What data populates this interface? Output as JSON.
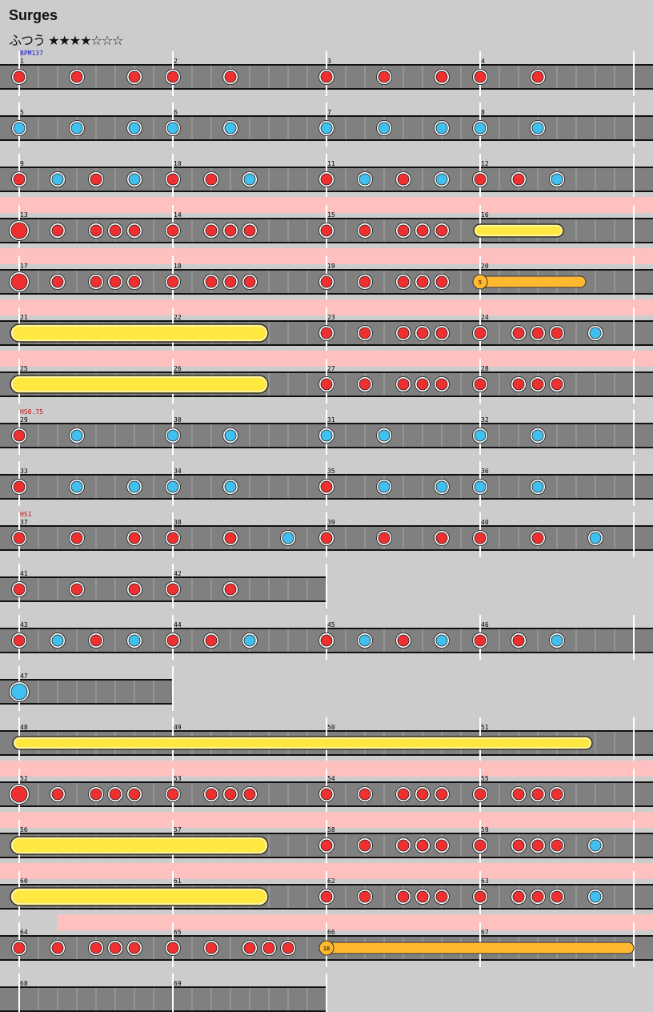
{
  "song": {
    "title": "Surges",
    "difficulty_label": "ふつう",
    "stars_filled": "★★★★",
    "stars_empty": "☆☆☆",
    "star_level": 4
  },
  "colors": {
    "don": "#f03030",
    "ka": "#40c0f0",
    "roll": "#ffe840",
    "balloon": "#ffb830",
    "gogo": "#ffc0c0",
    "lane": "#808080"
  },
  "annotations": [
    {
      "row": 0,
      "text": "BPM137",
      "color": "#1010c0"
    },
    {
      "row": 7,
      "text": "HS0.75",
      "color": "#c01010"
    },
    {
      "row": 9,
      "text": "HS1",
      "color": "#c01010"
    }
  ],
  "rows": [
    {
      "bars": 4,
      "numbers": [
        1,
        2,
        3,
        4
      ],
      "gogo": null,
      "notes": [
        [
          0,
          "d"
        ],
        [
          3,
          "d"
        ],
        [
          6,
          "d"
        ],
        [
          8,
          "d"
        ],
        [
          11,
          "d"
        ],
        [
          16,
          "d"
        ],
        [
          19,
          "d"
        ],
        [
          22,
          "d"
        ],
        [
          24,
          "d"
        ],
        [
          27,
          "d"
        ]
      ]
    },
    {
      "bars": 4,
      "numbers": [
        5,
        6,
        7,
        8
      ],
      "gogo": null,
      "notes": [
        [
          0,
          "k"
        ],
        [
          3,
          "k"
        ],
        [
          6,
          "k"
        ],
        [
          8,
          "k"
        ],
        [
          11,
          "k"
        ],
        [
          16,
          "k"
        ],
        [
          19,
          "k"
        ],
        [
          22,
          "k"
        ],
        [
          24,
          "k"
        ],
        [
          27,
          "k"
        ]
      ]
    },
    {
      "bars": 4,
      "numbers": [
        9,
        10,
        11,
        12
      ],
      "gogo": null,
      "notes": [
        [
          0,
          "d"
        ],
        [
          2,
          "k"
        ],
        [
          4,
          "d"
        ],
        [
          6,
          "k"
        ],
        [
          8,
          "d"
        ],
        [
          10,
          "d"
        ],
        [
          12,
          "k"
        ],
        [
          16,
          "d"
        ],
        [
          18,
          "k"
        ],
        [
          20,
          "d"
        ],
        [
          22,
          "k"
        ],
        [
          24,
          "d"
        ],
        [
          26,
          "d"
        ],
        [
          28,
          "k"
        ]
      ]
    },
    {
      "bars": 4,
      "numbers": [
        13,
        14,
        15,
        16
      ],
      "gogo": [
        0,
        32
      ],
      "notes": [
        [
          0,
          "D"
        ],
        [
          2,
          "d"
        ],
        [
          4,
          "d"
        ],
        [
          5,
          "d"
        ],
        [
          6,
          "d"
        ],
        [
          8,
          "d"
        ],
        [
          10,
          "d"
        ],
        [
          11,
          "d"
        ],
        [
          12,
          "d"
        ],
        [
          16,
          "d"
        ],
        [
          18,
          "d"
        ],
        [
          20,
          "d"
        ],
        [
          21,
          "d"
        ],
        [
          22,
          "d"
        ]
      ],
      "rolls": [
        [
          24,
          28,
          "roll"
        ]
      ]
    },
    {
      "bars": 4,
      "numbers": [
        17,
        18,
        19,
        20
      ],
      "gogo": [
        0,
        32
      ],
      "notes": [
        [
          0,
          "D"
        ],
        [
          2,
          "d"
        ],
        [
          4,
          "d"
        ],
        [
          5,
          "d"
        ],
        [
          6,
          "d"
        ],
        [
          8,
          "d"
        ],
        [
          10,
          "d"
        ],
        [
          11,
          "d"
        ],
        [
          12,
          "d"
        ],
        [
          16,
          "d"
        ],
        [
          18,
          "d"
        ],
        [
          20,
          "d"
        ],
        [
          21,
          "d"
        ],
        [
          22,
          "d"
        ]
      ],
      "rolls": [
        [
          24,
          29.5,
          "balloon",
          "5"
        ]
      ]
    },
    {
      "bars": 4,
      "numbers": [
        21,
        22,
        23,
        24
      ],
      "gogo": [
        0,
        32
      ],
      "notes": [
        [
          16,
          "d"
        ],
        [
          18,
          "d"
        ],
        [
          20,
          "d"
        ],
        [
          21,
          "d"
        ],
        [
          22,
          "d"
        ],
        [
          24,
          "d"
        ],
        [
          26,
          "d"
        ],
        [
          27,
          "d"
        ],
        [
          28,
          "d"
        ],
        [
          30,
          "k"
        ]
      ],
      "rolls": [
        [
          0,
          12.5,
          "bigroll"
        ]
      ]
    },
    {
      "bars": 4,
      "numbers": [
        25,
        26,
        27,
        28
      ],
      "gogo": [
        0,
        32
      ],
      "notes": [
        [
          16,
          "d"
        ],
        [
          18,
          "d"
        ],
        [
          20,
          "d"
        ],
        [
          21,
          "d"
        ],
        [
          22,
          "d"
        ],
        [
          24,
          "d"
        ],
        [
          26,
          "d"
        ],
        [
          27,
          "d"
        ],
        [
          28,
          "d"
        ]
      ],
      "rolls": [
        [
          0,
          12.5,
          "bigroll"
        ]
      ]
    },
    {
      "bars": 4,
      "numbers": [
        29,
        30,
        31,
        32
      ],
      "gogo": null,
      "notes": [
        [
          0,
          "d"
        ],
        [
          3,
          "k"
        ],
        [
          8,
          "k"
        ],
        [
          11,
          "k"
        ],
        [
          16,
          "k"
        ],
        [
          19,
          "k"
        ],
        [
          24,
          "k"
        ],
        [
          27,
          "k"
        ]
      ]
    },
    {
      "bars": 4,
      "numbers": [
        33,
        34,
        35,
        36
      ],
      "gogo": null,
      "notes": [
        [
          0,
          "d"
        ],
        [
          3,
          "k"
        ],
        [
          6,
          "k"
        ],
        [
          8,
          "k"
        ],
        [
          11,
          "k"
        ],
        [
          16,
          "d"
        ],
        [
          19,
          "k"
        ],
        [
          22,
          "k"
        ],
        [
          24,
          "k"
        ],
        [
          27,
          "k"
        ]
      ]
    },
    {
      "bars": 4,
      "numbers": [
        37,
        38,
        39,
        40
      ],
      "gogo": null,
      "notes": [
        [
          0,
          "d"
        ],
        [
          3,
          "d"
        ],
        [
          6,
          "d"
        ],
        [
          8,
          "d"
        ],
        [
          11,
          "d"
        ],
        [
          14,
          "k"
        ],
        [
          16,
          "d"
        ],
        [
          19,
          "d"
        ],
        [
          22,
          "d"
        ],
        [
          24,
          "d"
        ],
        [
          27,
          "d"
        ],
        [
          30,
          "k"
        ]
      ]
    },
    {
      "bars": 2,
      "numbers": [
        41,
        42
      ],
      "gogo": null,
      "notes": [
        [
          0,
          "d"
        ],
        [
          3,
          "d"
        ],
        [
          6,
          "d"
        ],
        [
          8,
          "d"
        ],
        [
          11,
          "d"
        ]
      ]
    },
    {
      "bars": 4,
      "numbers": [
        43,
        44,
        45,
        46
      ],
      "gogo": null,
      "notes": [
        [
          0,
          "d"
        ],
        [
          2,
          "k"
        ],
        [
          4,
          "d"
        ],
        [
          6,
          "k"
        ],
        [
          8,
          "d"
        ],
        [
          10,
          "d"
        ],
        [
          12,
          "k"
        ],
        [
          16,
          "d"
        ],
        [
          18,
          "k"
        ],
        [
          20,
          "d"
        ],
        [
          22,
          "k"
        ],
        [
          24,
          "d"
        ],
        [
          26,
          "d"
        ],
        [
          28,
          "k"
        ]
      ]
    },
    {
      "bars": 1,
      "numbers": [
        47
      ],
      "gogo": null,
      "notes": [
        [
          0,
          "K"
        ]
      ]
    },
    {
      "bars": 4,
      "numbers": [
        48,
        49,
        50,
        51
      ],
      "gogo": null,
      "notes": [],
      "rolls": [
        [
          0,
          29.5,
          "roll"
        ]
      ]
    },
    {
      "bars": 4,
      "numbers": [
        52,
        53,
        54,
        55
      ],
      "gogo": [
        0,
        32
      ],
      "notes": [
        [
          0,
          "D"
        ],
        [
          2,
          "d"
        ],
        [
          4,
          "d"
        ],
        [
          5,
          "d"
        ],
        [
          6,
          "d"
        ],
        [
          8,
          "d"
        ],
        [
          10,
          "d"
        ],
        [
          11,
          "d"
        ],
        [
          12,
          "d"
        ],
        [
          16,
          "d"
        ],
        [
          18,
          "d"
        ],
        [
          20,
          "d"
        ],
        [
          21,
          "d"
        ],
        [
          22,
          "d"
        ],
        [
          24,
          "d"
        ],
        [
          26,
          "d"
        ],
        [
          27,
          "d"
        ],
        [
          28,
          "d"
        ]
      ]
    },
    {
      "bars": 4,
      "numbers": [
        56,
        57,
        58,
        59
      ],
      "gogo": [
        0,
        32
      ],
      "notes": [
        [
          16,
          "d"
        ],
        [
          18,
          "d"
        ],
        [
          20,
          "d"
        ],
        [
          21,
          "d"
        ],
        [
          22,
          "d"
        ],
        [
          24,
          "d"
        ],
        [
          26,
          "d"
        ],
        [
          27,
          "d"
        ],
        [
          28,
          "d"
        ],
        [
          30,
          "k"
        ]
      ],
      "rolls": [
        [
          0,
          12.5,
          "bigroll"
        ]
      ]
    },
    {
      "bars": 4,
      "numbers": [
        60,
        61,
        62,
        63
      ],
      "gogo": [
        0,
        32
      ],
      "notes": [
        [
          16,
          "d"
        ],
        [
          18,
          "d"
        ],
        [
          20,
          "d"
        ],
        [
          21,
          "d"
        ],
        [
          22,
          "d"
        ],
        [
          24,
          "d"
        ],
        [
          26,
          "d"
        ],
        [
          27,
          "d"
        ],
        [
          28,
          "d"
        ],
        [
          30,
          "k"
        ]
      ],
      "rolls": [
        [
          0,
          12.5,
          "bigroll"
        ]
      ]
    },
    {
      "bars": 4,
      "numbers": [
        64,
        65,
        66,
        67
      ],
      "gogo": [
        2,
        32
      ],
      "notes": [
        [
          0,
          "d"
        ],
        [
          2,
          "d"
        ],
        [
          4,
          "d"
        ],
        [
          5,
          "d"
        ],
        [
          6,
          "d"
        ],
        [
          8,
          "d"
        ],
        [
          10,
          "d"
        ],
        [
          12,
          "d"
        ],
        [
          13,
          "d"
        ],
        [
          14,
          "d"
        ]
      ],
      "rolls": [
        [
          16,
          32,
          "balloon",
          "18"
        ]
      ]
    },
    {
      "bars": 2,
      "numbers": [
        68,
        69
      ],
      "gogo": null,
      "notes": []
    }
  ]
}
